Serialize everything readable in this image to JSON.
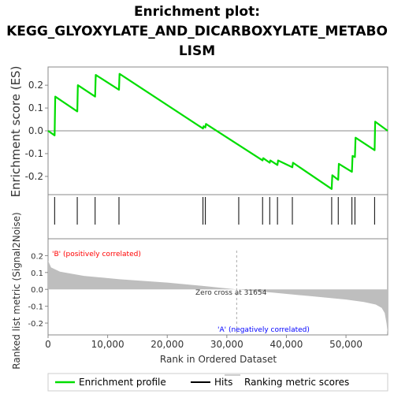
{
  "title_lines": [
    "Enrichment plot:",
    "KEGG_GLYOXYLATE_AND_DICARBOXYLATE_METABO",
    "LISM"
  ],
  "chart_data": {
    "type": "line",
    "es_panel": {
      "ylabel": "Enrichment score (ES)",
      "ylim": [
        -0.28,
        0.28
      ],
      "yticks": [
        0.2,
        0.1,
        0.0,
        -0.1,
        -0.2
      ],
      "ytick_labels": [
        "0.2",
        "0.1",
        "0.0",
        "-0.1",
        "-0.2"
      ],
      "series": [
        {
          "name": "Enrichment profile",
          "x": [
            0,
            1100,
            1200,
            4900,
            5000,
            7900,
            8000,
            11900,
            12000,
            26000,
            26100,
            26400,
            26500,
            36000,
            36100,
            37200,
            37300,
            38500,
            38600,
            41000,
            41100,
            47600,
            47700,
            48700,
            48800,
            51000,
            51100,
            51500,
            51600,
            54800,
            54900,
            57000
          ],
          "y": [
            0.0,
            -0.02,
            0.15,
            0.085,
            0.2,
            0.15,
            0.245,
            0.18,
            0.25,
            0.01,
            0.02,
            0.015,
            0.03,
            -0.13,
            -0.12,
            -0.14,
            -0.13,
            -0.15,
            -0.13,
            -0.16,
            -0.14,
            -0.255,
            -0.195,
            -0.215,
            -0.145,
            -0.18,
            -0.11,
            -0.115,
            -0.03,
            -0.085,
            0.04,
            0.0
          ]
        }
      ]
    },
    "hits": [
      1100,
      4900,
      7900,
      11900,
      26000,
      26400,
      32000,
      36000,
      37200,
      38500,
      41000,
      47600,
      48700,
      51000,
      51500,
      54800
    ],
    "rank_panel": {
      "ylabel": "Ranked list metric (Signal2Noise)",
      "ylim": [
        -0.27,
        0.3
      ],
      "yticks": [
        0.2,
        0.1,
        0.0,
        -0.1,
        -0.2
      ],
      "ytick_labels": [
        "0.2",
        "0.1",
        "0.0",
        "-0.1",
        "-0.2"
      ],
      "metric_x": [
        0,
        500,
        2000,
        6000,
        12000,
        20000,
        26000,
        31654,
        38000,
        44000,
        50000,
        53000,
        55000,
        56000,
        56500,
        56800,
        57000
      ],
      "metric_y": [
        0.17,
        0.13,
        0.105,
        0.08,
        0.06,
        0.04,
        0.02,
        0.0,
        -0.02,
        -0.04,
        -0.06,
        -0.075,
        -0.09,
        -0.11,
        -0.14,
        -0.2,
        -0.26
      ]
    },
    "xlabel": "Rank in Ordered Dataset",
    "xlim": [
      0,
      57000
    ],
    "xticks": [
      0,
      10000,
      20000,
      30000,
      40000,
      50000
    ],
    "xtick_labels": [
      "0",
      "10,000",
      "20,000",
      "30,000",
      "40,000",
      "50,000"
    ],
    "zero_cross": 31654,
    "annotations": {
      "positive": "'B' (positively correlated)",
      "negative": "'A' (negatively correlated)",
      "zero_cross": "Zero cross at 31654"
    },
    "legend": [
      "Enrichment profile",
      "Hits",
      "Ranking metric scores"
    ],
    "colors": {
      "profile": "#00dd00",
      "hits": "#000000",
      "metric": "#bebebe",
      "positive_text": "#ff0000",
      "negative_text": "#0000ff",
      "heat_positive": "#ee0000",
      "heat_negative": "#2222dd"
    }
  }
}
